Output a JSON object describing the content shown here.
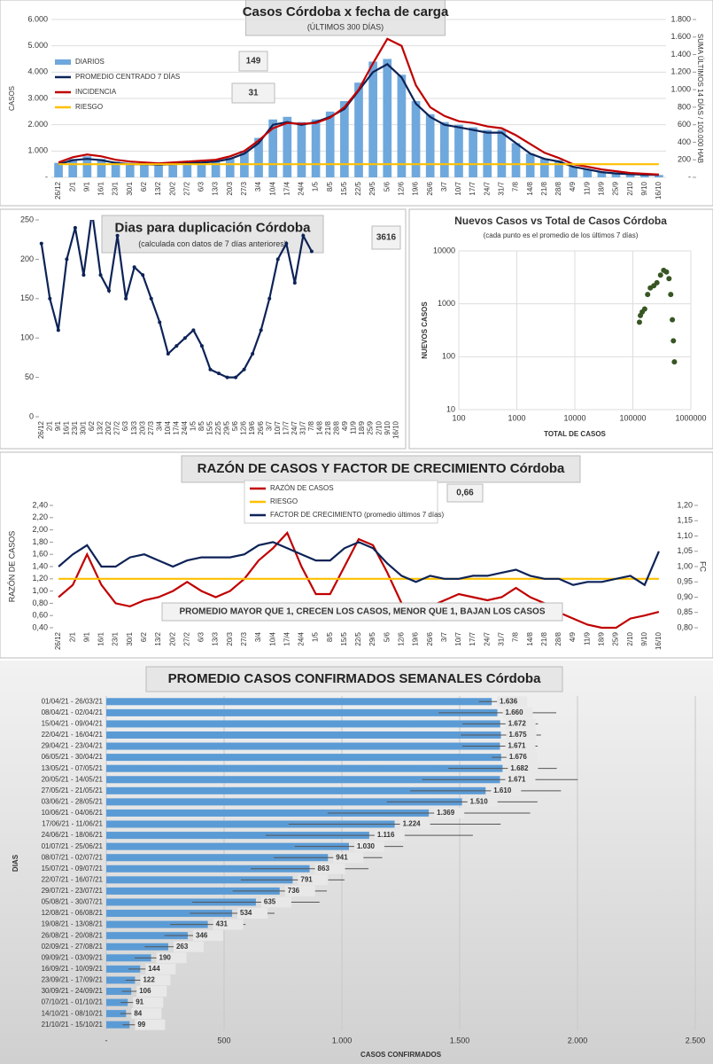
{
  "chart_data": [
    {
      "type": "combo",
      "title": "Casos Córdoba x fecha de carga",
      "subtitle": "(ÚLTIMOS 300 DÍAS)",
      "y_label": "CASOS",
      "y2_label": "SUMA ÚLTIMOS 14 DÍAS / 100.000 HAB",
      "annotations": [
        "149",
        "31"
      ],
      "legend": "upper left",
      "grid": true,
      "categories": [
        "26/12",
        "2/1",
        "9/1",
        "16/1",
        "23/1",
        "30/1",
        "6/2",
        "13/2",
        "20/2",
        "27/2",
        "6/3",
        "13/3",
        "20/3",
        "27/3",
        "3/4",
        "10/4",
        "17/4",
        "24/4",
        "1/5",
        "8/5",
        "15/5",
        "22/5",
        "29/5",
        "5/6",
        "12/6",
        "19/6",
        "26/6",
        "3/7",
        "10/7",
        "17/7",
        "24/7",
        "31/7",
        "7/8",
        "14/8",
        "21/8",
        "28/8",
        "4/9",
        "11/9",
        "18/9",
        "25/9",
        "2/10",
        "9/10",
        "16/10"
      ],
      "ylim": [
        0,
        6000
      ],
      "yticks": [
        {
          "value": 0,
          "label": "-"
        },
        {
          "value": 1000,
          "label": "1.000"
        },
        {
          "value": 2000,
          "label": "2.000"
        },
        {
          "value": 3000,
          "label": "3.000"
        },
        {
          "value": 4000,
          "label": "4.000"
        },
        {
          "value": 5000,
          "label": "5.000"
        },
        {
          "value": 6000,
          "label": "6.000"
        }
      ],
      "y2lim": [
        0,
        1800
      ],
      "y2ticks": [
        {
          "value": 0,
          "label": "-"
        },
        200,
        400,
        600,
        800,
        {
          "value": 1000,
          "label": "1.000"
        },
        {
          "value": 1200,
          "label": "1.200"
        },
        {
          "value": 1400,
          "label": "1.400"
        },
        {
          "value": 1600,
          "label": "1.600"
        },
        {
          "value": 1800,
          "label": "1.800"
        }
      ],
      "series": [
        {
          "name": "DIARIOS",
          "type": "bar",
          "color": "#6fa8dc",
          "values": [
            550,
            700,
            800,
            700,
            600,
            550,
            500,
            550,
            500,
            600,
            600,
            650,
            750,
            1000,
            1500,
            2200,
            2300,
            2100,
            2200,
            2500,
            2900,
            3600,
            4400,
            4500,
            3900,
            2900,
            2400,
            2100,
            2000,
            1900,
            1800,
            1800,
            1300,
            900,
            700,
            650,
            400,
            300,
            220,
            160,
            120,
            100,
            90
          ]
        },
        {
          "name": "PROMEDIO CENTRADO 7 DÍAS",
          "type": "line",
          "color": "#0d2357",
          "values": [
            500,
            650,
            700,
            650,
            550,
            500,
            500,
            480,
            500,
            550,
            560,
            600,
            700,
            900,
            1300,
            2000,
            2100,
            2000,
            2100,
            2300,
            2600,
            3300,
            4000,
            4300,
            3800,
            2800,
            2300,
            2000,
            1900,
            1800,
            1700,
            1700,
            1300,
            900,
            700,
            600,
            400,
            300,
            200,
            150,
            120,
            100,
            90
          ]
        },
        {
          "name": "INCIDENCIA",
          "type": "line",
          "axis": "y2",
          "color": "#c00000",
          "values": [
            170,
            230,
            260,
            240,
            200,
            180,
            170,
            160,
            170,
            180,
            190,
            200,
            240,
            300,
            420,
            560,
            620,
            610,
            620,
            680,
            800,
            1000,
            1300,
            1580,
            1500,
            1050,
            800,
            700,
            640,
            620,
            580,
            560,
            480,
            380,
            280,
            220,
            150,
            120,
            90,
            70,
            50,
            40,
            31
          ]
        },
        {
          "name": "RIESGO",
          "type": "line",
          "axis": "y2",
          "color": "#ffc000",
          "values": [
            150,
            150,
            150,
            150,
            150,
            150,
            150,
            150,
            150,
            150,
            150,
            150,
            150,
            150,
            150,
            150,
            150,
            150,
            150,
            150,
            150,
            150,
            150,
            150,
            150,
            150,
            150,
            150,
            150,
            150,
            150,
            150,
            150,
            150,
            150,
            150,
            150,
            150,
            150,
            150,
            150,
            150,
            150
          ]
        }
      ]
    },
    {
      "type": "line",
      "title": "Dias para duplicación Córdoba",
      "subtitle": "(calculada con datos de 7 días anteriores)",
      "annotations": [
        "3616"
      ],
      "grid": false,
      "categories": [
        "26/12",
        "2/1",
        "9/1",
        "16/1",
        "23/1",
        "30/1",
        "6/2",
        "13/2",
        "20/2",
        "27/2",
        "6/3",
        "13/3",
        "20/3",
        "27/3",
        "3/4",
        "10/4",
        "17/4",
        "24/4",
        "1/5",
        "8/5",
        "15/5",
        "22/5",
        "29/5",
        "5/6",
        "12/6",
        "19/6",
        "26/6",
        "3/7",
        "10/7",
        "17/7",
        "24/7",
        "31/7",
        "7/8",
        "14/8",
        "21/8",
        "28/8",
        "4/9",
        "11/9",
        "18/9",
        "25/9",
        "2/10",
        "9/10",
        "16/10"
      ],
      "ylim": [
        0,
        250
      ],
      "yticks": [
        0,
        50,
        100,
        150,
        200,
        250
      ],
      "series": [
        {
          "name": "DIAS",
          "color": "#0d2357",
          "values": [
            220,
            150,
            110,
            200,
            240,
            180,
            260,
            180,
            160,
            230,
            150,
            190,
            180,
            150,
            120,
            80,
            90,
            100,
            110,
            90,
            60,
            55,
            50,
            50,
            60,
            80,
            110,
            150,
            200,
            220,
            170,
            230,
            210,
            null,
            null,
            null,
            null,
            null,
            null,
            null,
            null,
            null,
            null
          ]
        }
      ]
    },
    {
      "type": "scatter",
      "title": "Nuevos Casos vs Total de Casos Córdoba",
      "subtitle": "(cada punto es el promedio de los últimos 7 días)",
      "x_label": "TOTAL DE CASOS",
      "y_label": "NUEVOS CASOS",
      "log_scale": true,
      "grid": true,
      "color": "#375623",
      "xlim": [
        100,
        1000000
      ],
      "xticks": [
        100,
        1000,
        10000,
        100000,
        1000000
      ],
      "ylim": [
        10,
        10000
      ],
      "yticks": [
        10,
        100,
        1000,
        10000
      ],
      "x": [
        130000,
        135000,
        145000,
        160000,
        180000,
        200000,
        230000,
        260000,
        300000,
        340000,
        380000,
        420000,
        450000,
        480000,
        500000,
        520000
      ],
      "values": [
        450,
        600,
        700,
        800,
        1500,
        2000,
        2200,
        2500,
        3500,
        4300,
        4000,
        3000,
        1500,
        500,
        200,
        80
      ]
    },
    {
      "type": "line",
      "title": "RAZÓN DE CASOS Y FACTOR DE CRECIMIENTO Córdoba",
      "y_label": "RAZÓN DE CASOS",
      "y2_label": "FC",
      "annotations": [
        "0,66",
        "PROMEDIO MAYOR QUE 1, CRECEN LOS CASOS, MENOR QUE 1, BAJAN LOS CASOS"
      ],
      "legend": "top",
      "grid": false,
      "categories": [
        "26/12",
        "2/1",
        "9/1",
        "16/1",
        "23/1",
        "30/1",
        "6/2",
        "13/2",
        "20/2",
        "27/2",
        "6/3",
        "13/3",
        "20/3",
        "27/3",
        "3/4",
        "10/4",
        "17/4",
        "24/4",
        "1/5",
        "8/5",
        "15/5",
        "22/5",
        "29/5",
        "5/6",
        "12/6",
        "19/6",
        "26/6",
        "3/7",
        "10/7",
        "17/7",
        "24/7",
        "31/7",
        "7/8",
        "14/8",
        "21/8",
        "28/8",
        "4/9",
        "11/9",
        "18/9",
        "25/9",
        "2/10",
        "9/10",
        "16/10"
      ],
      "ylim": [
        0.4,
        2.4
      ],
      "yticks": [
        {
          "value": 0.4,
          "label": "0,40"
        },
        {
          "value": 0.6,
          "label": "0,60"
        },
        {
          "value": 0.8,
          "label": "0,80"
        },
        {
          "value": 1.0,
          "label": "1,00"
        },
        {
          "value": 1.2,
          "label": "1,20"
        },
        {
          "value": 1.4,
          "label": "1,40"
        },
        {
          "value": 1.6,
          "label": "1,60"
        },
        {
          "value": 1.8,
          "label": "1,80"
        },
        {
          "value": 2.0,
          "label": "2,00"
        },
        {
          "value": 2.2,
          "label": "2,20"
        },
        {
          "value": 2.4,
          "label": "2,40"
        }
      ],
      "y2lim": [
        0.8,
        1.2
      ],
      "y2ticks": [
        {
          "value": 0.8,
          "label": "0,80"
        },
        {
          "value": 0.85,
          "label": "0,85"
        },
        {
          "value": 0.9,
          "label": "0,90"
        },
        {
          "value": 0.95,
          "label": "0,95"
        },
        {
          "value": 1.0,
          "label": "1,00"
        },
        {
          "value": 1.05,
          "label": "1,05"
        },
        {
          "value": 1.1,
          "label": "1,10"
        },
        {
          "value": 1.15,
          "label": "1,15"
        },
        {
          "value": 1.2,
          "label": "1,20"
        }
      ],
      "series": [
        {
          "name": "RAZÓN DE CASOS",
          "color": "#c00000",
          "values": [
            0.9,
            1.1,
            1.6,
            1.1,
            0.8,
            0.75,
            0.85,
            0.9,
            1.0,
            1.15,
            1.0,
            0.9,
            1.0,
            1.2,
            1.5,
            1.7,
            1.95,
            1.4,
            0.95,
            0.95,
            1.4,
            1.85,
            1.75,
            1.3,
            0.8,
            0.7,
            0.75,
            0.85,
            0.95,
            0.9,
            0.85,
            0.9,
            1.05,
            0.9,
            0.8,
            0.65,
            0.55,
            0.45,
            0.4,
            0.4,
            0.55,
            0.6,
            0.66
          ]
        },
        {
          "name": "RIESGO",
          "color": "#ffc000",
          "values": [
            1.2,
            1.2,
            1.2,
            1.2,
            1.2,
            1.2,
            1.2,
            1.2,
            1.2,
            1.2,
            1.2,
            1.2,
            1.2,
            1.2,
            1.2,
            1.2,
            1.2,
            1.2,
            1.2,
            1.2,
            1.2,
            1.2,
            1.2,
            1.2,
            1.2,
            1.2,
            1.2,
            1.2,
            1.2,
            1.2,
            1.2,
            1.2,
            1.2,
            1.2,
            1.2,
            1.2,
            1.2,
            1.2,
            1.2,
            1.2,
            1.2,
            1.2,
            1.2
          ]
        },
        {
          "name": "FACTOR DE CRECIMIENTO (promedio últimos 7 días)",
          "axis": "y2",
          "color": "#0d2357",
          "values": [
            1.0,
            1.04,
            1.07,
            1.0,
            1.0,
            1.03,
            1.04,
            1.02,
            1.0,
            1.02,
            1.03,
            1.03,
            1.03,
            1.04,
            1.07,
            1.08,
            1.06,
            1.04,
            1.02,
            1.02,
            1.06,
            1.08,
            1.06,
            1.01,
            0.97,
            0.95,
            0.97,
            0.96,
            0.96,
            0.97,
            0.97,
            0.98,
            0.99,
            0.97,
            0.96,
            0.96,
            0.94,
            0.95,
            0.95,
            0.96,
            0.97,
            0.94,
            1.05
          ]
        }
      ]
    },
    {
      "type": "bar",
      "orientation": "horizontal",
      "title": "PROMEDIO CASOS CONFIRMADOS SEMANALES Córdoba",
      "x_label": "CASOS CONFIRMADOS",
      "y_label": "DIAS",
      "color": "#5b9bd5",
      "grid": true,
      "categories": [
        "01/04/21 - 26/03/21",
        "08/04/21 - 02/04/21",
        "15/04/21 - 09/04/21",
        "22/04/21 - 16/04/21",
        "29/04/21 - 23/04/21",
        "06/05/21 - 30/04/21",
        "13/05/21 - 07/05/21",
        "20/05/21 - 14/05/21",
        "27/05/21 - 21/05/21",
        "03/06/21 - 28/05/21",
        "10/06/21 - 04/06/21",
        "17/06/21 - 11/06/21",
        "24/06/21 - 18/06/21",
        "01/07/21 - 25/06/21",
        "08/07/21 - 02/07/21",
        "15/07/21 - 09/07/21",
        "22/07/21 - 16/07/21",
        "29/07/21 - 23/07/21",
        "05/08/21 - 30/07/21",
        "12/08/21 - 06/08/21",
        "19/08/21 - 13/08/21",
        "26/08/21 - 20/08/21",
        "02/09/21 - 27/08/21",
        "09/09/21 - 03/09/21",
        "16/09/21 - 10/09/21",
        "23/09/21 - 17/09/21",
        "30/09/21 - 24/09/21",
        "07/10/21 - 01/10/21",
        "14/10/21 - 08/10/21",
        "21/10/21 - 15/10/21"
      ],
      "values": [
        1636,
        1660,
        1672,
        1675,
        1671,
        1676,
        1682,
        1671,
        1610,
        1510,
        1369,
        1224,
        1116,
        1030,
        941,
        863,
        791,
        736,
        635,
        534,
        431,
        346,
        263,
        190,
        144,
        122,
        106,
        91,
        84,
        99
      ],
      "value_labels": [
        "1.636",
        "1.660",
        "1.672",
        "1.675",
        "1.671",
        "1.676",
        "1.682",
        "1.671",
        "1.610",
        "1.510",
        "1.369",
        "1.224",
        "1.116",
        "1.030",
        "941",
        "863",
        "791",
        "736",
        "635",
        "534",
        "431",
        "346",
        "263",
        "190",
        "144",
        "122",
        "106",
        "91",
        "84",
        "99"
      ],
      "errors": [
        55,
        250,
        160,
        170,
        160,
        40,
        230,
        330,
        320,
        320,
        430,
        450,
        440,
        230,
        230,
        250,
        220,
        200,
        270,
        180,
        160,
        100,
        100,
        70,
        50,
        40,
        40,
        30,
        25,
        30
      ],
      "xlim": [
        0,
        2500
      ],
      "xticks": [
        {
          "value": 0,
          "label": "-"
        },
        500,
        {
          "value": 1000,
          "label": "1.000"
        },
        {
          "value": 1500,
          "label": "1.500"
        },
        {
          "value": 2000,
          "label": "2.000"
        },
        {
          "value": 2500,
          "label": "2.500"
        }
      ]
    }
  ]
}
